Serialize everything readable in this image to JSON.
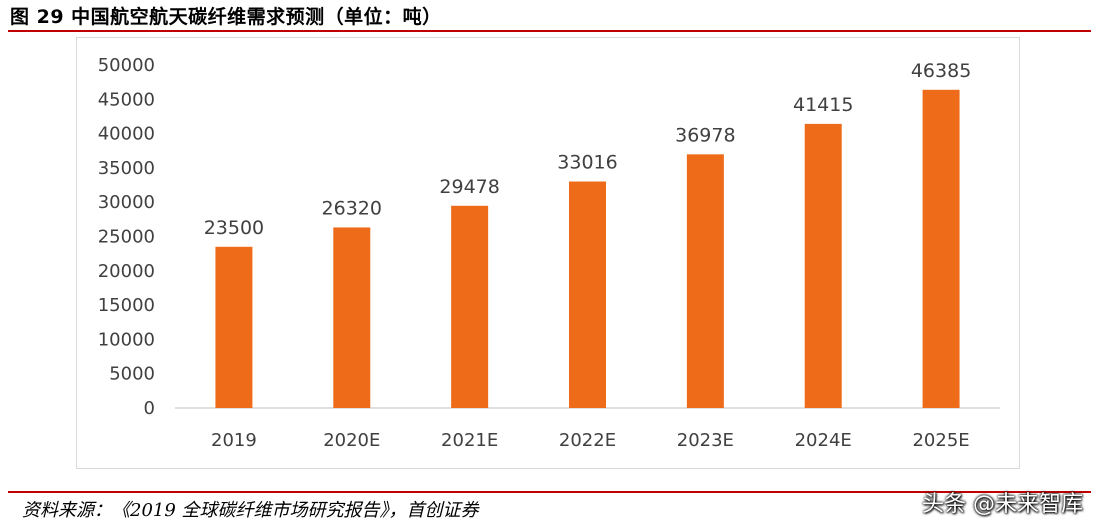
{
  "figure": {
    "title": "图 29  中国航空航天碳纤维需求预测（单位：吨）"
  },
  "source": {
    "text": "资料来源：《2019 全球碳纤维市场研究报告》，首创证券"
  },
  "watermark": {
    "text": "头条 @未来智库"
  },
  "colors": {
    "bar": "#ee6c19",
    "accent_rule": "#c00000",
    "axis": "#bfbfbf",
    "text": "#404040"
  },
  "chart_data": {
    "type": "bar",
    "categories": [
      "2019",
      "2020E",
      "2021E",
      "2022E",
      "2023E",
      "2024E",
      "2025E"
    ],
    "values": [
      23500,
      26320,
      29478,
      33016,
      36978,
      41415,
      46385
    ],
    "yticks": [
      "0",
      "5000",
      "10000",
      "15000",
      "20000",
      "25000",
      "30000",
      "35000",
      "40000",
      "45000",
      "50000"
    ],
    "ylim": [
      0,
      50000
    ],
    "grid": false,
    "legend": "none",
    "data_labels": [
      "23500",
      "26320",
      "29478",
      "33016",
      "36978",
      "41415",
      "46385"
    ]
  }
}
